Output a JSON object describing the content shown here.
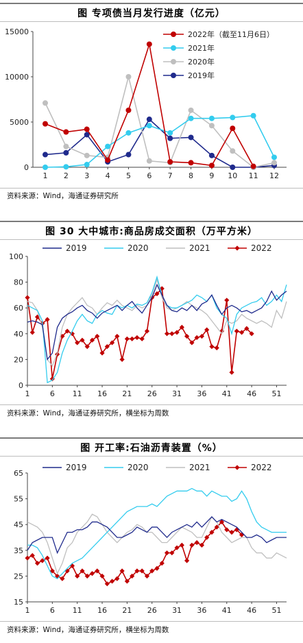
{
  "panels": [
    {
      "title": "图    专项债当月发行进度（亿元）",
      "source": "资料来源：Wind，海通证券研究所"
    },
    {
      "title": "图    30 大中城市:商品房成交面积（万平方米）",
      "source": "资料来源：Wind，海通证券研究所，横坐标为周数"
    },
    {
      "title": "图    开工率:石油沥青装置（%）",
      "source": "资料来源：Wind，海通证券研究所，横坐标为周数"
    }
  ],
  "chart_data": [
    {
      "type": "line",
      "title": "专项债当月发行进度（亿元）",
      "x": [
        1,
        2,
        3,
        4,
        5,
        6,
        7,
        8,
        9,
        10,
        11,
        12
      ],
      "xticks": [
        "1",
        "2",
        "3",
        "4",
        "5",
        "6",
        "7",
        "8",
        "9",
        "10",
        "11",
        "12"
      ],
      "ylim": [
        0,
        15000
      ],
      "yticks": [
        "0",
        "5000",
        "10000",
        "15000"
      ],
      "legend_position": "top-right",
      "series": [
        {
          "name": "2022年（截至11月6日）",
          "color": "#c00000",
          "marker": "circle",
          "values": [
            4800,
            3900,
            4200,
            800,
            6300,
            13600,
            600,
            500,
            200,
            4300,
            100,
            null
          ]
        },
        {
          "name": "2021年",
          "color": "#33ccee",
          "marker": "circle",
          "values": [
            0,
            50,
            300,
            2300,
            3800,
            4600,
            3800,
            5400,
            5400,
            5500,
            5700,
            1100
          ]
        },
        {
          "name": "2020年",
          "color": "#bfbfbf",
          "marker": "circle",
          "values": [
            7100,
            2300,
            1300,
            1100,
            10000,
            700,
            500,
            6300,
            4600,
            1800,
            0,
            500
          ]
        },
        {
          "name": "2019年",
          "color": "#1f2a8c",
          "marker": "circle",
          "values": [
            1400,
            1600,
            3600,
            600,
            1400,
            5300,
            3200,
            3300,
            1300,
            0,
            0,
            200
          ]
        }
      ]
    },
    {
      "type": "line",
      "title": "30 大中城市:商品房成交面积（万平方米）",
      "x_range": [
        1,
        53
      ],
      "xticks": [
        "1",
        "6",
        "11",
        "16",
        "21",
        "26",
        "31",
        "36",
        "41",
        "46",
        "51"
      ],
      "ylim": [
        0,
        100
      ],
      "yticks": [
        "0",
        "20",
        "40",
        "60",
        "80",
        "100"
      ],
      "legend_position": "top",
      "series": [
        {
          "name": "2019",
          "color": "#1f2a8c",
          "marker": "none",
          "values": [
            49,
            50,
            49,
            47,
            20,
            25,
            45,
            52,
            55,
            57,
            60,
            62,
            58,
            56,
            52,
            56,
            58,
            60,
            62,
            58,
            62,
            65,
            60,
            56,
            62,
            68,
            78,
            70,
            62,
            58,
            57,
            60,
            58,
            62,
            58,
            63,
            65,
            70,
            62,
            55,
            60,
            62,
            60,
            57,
            58,
            56,
            58,
            60,
            65,
            73,
            66,
            70,
            73
          ]
        },
        {
          "name": "2020",
          "color": "#33ccee",
          "marker": "none",
          "values": [
            62,
            60,
            58,
            50,
            2,
            4,
            10,
            25,
            35,
            42,
            50,
            55,
            50,
            48,
            55,
            58,
            56,
            55,
            62,
            60,
            62,
            60,
            63,
            62,
            64,
            72,
            84,
            70,
            62,
            60,
            60,
            62,
            64,
            66,
            70,
            68,
            65,
            70,
            60,
            55,
            52,
            40,
            55,
            60,
            62,
            64,
            65,
            68,
            62,
            65,
            70,
            65,
            78
          ]
        },
        {
          "name": "2021",
          "color": "#bfbfbf",
          "marker": "none",
          "values": [
            65,
            64,
            58,
            45,
            20,
            15,
            25,
            45,
            55,
            60,
            64,
            68,
            62,
            60,
            55,
            60,
            64,
            62,
            66,
            62,
            60,
            58,
            62,
            60,
            62,
            70,
            82,
            68,
            60,
            58,
            60,
            62,
            65,
            62,
            60,
            58,
            55,
            50,
            45,
            40,
            50,
            48,
            50,
            55,
            52,
            50,
            48,
            50,
            48,
            45,
            58,
            52,
            65
          ]
        },
        {
          "name": "2022",
          "color": "#c00000",
          "marker": "diamond",
          "values": [
            68,
            41,
            53,
            48,
            51,
            5,
            24,
            38,
            42,
            40,
            33,
            35,
            30,
            35,
            38,
            25,
            30,
            33,
            38,
            20,
            36,
            36,
            37,
            36,
            42,
            68,
            71,
            75,
            40,
            40,
            41,
            45,
            38,
            33,
            37,
            38,
            43,
            30,
            29,
            42,
            66,
            10,
            42,
            41,
            44,
            40
          ]
        }
      ]
    },
    {
      "type": "line",
      "title": "开工率:石油沥青装置（%）",
      "x_range": [
        1,
        53
      ],
      "xticks": [
        "1",
        "6",
        "11",
        "16",
        "21",
        "26",
        "31",
        "36",
        "41",
        "46",
        "51"
      ],
      "ylim": [
        15,
        65
      ],
      "yticks": [
        "15",
        "25",
        "35",
        "45",
        "55",
        "65"
      ],
      "legend_position": "top",
      "series": [
        {
          "name": "2019",
          "color": "#1f2a8c",
          "marker": "none",
          "values": [
            35,
            38,
            39,
            40,
            40,
            40,
            34,
            38,
            42,
            42,
            43,
            43,
            44,
            46,
            46,
            45,
            44,
            42,
            40,
            40,
            41,
            42,
            44,
            43,
            42,
            44,
            44,
            42,
            40,
            42,
            43,
            44,
            45,
            44,
            46,
            44,
            46,
            48,
            46,
            47,
            46,
            45,
            44,
            42,
            40,
            40,
            41,
            40,
            38,
            39,
            40,
            40,
            40
          ]
        },
        {
          "name": "2020",
          "color": "#33ccee",
          "marker": "none",
          "values": [
            37,
            37,
            36,
            33,
            29,
            25,
            24,
            26,
            28,
            30,
            31,
            32,
            34,
            36,
            38,
            40,
            42,
            44,
            46,
            48,
            50,
            51,
            52,
            52,
            52,
            53,
            52,
            54,
            56,
            57,
            58,
            58,
            58,
            59,
            58,
            58,
            56,
            58,
            57,
            56,
            56,
            54,
            55,
            58,
            55,
            50,
            46,
            44,
            43,
            42,
            42,
            42,
            42
          ]
        },
        {
          "name": "2021",
          "color": "#bfbfbf",
          "marker": "none",
          "values": [
            46,
            45,
            44,
            42,
            38,
            32,
            26,
            30,
            36,
            38,
            42,
            44,
            46,
            49,
            48,
            45,
            42,
            40,
            38,
            40,
            42,
            43,
            45,
            44,
            42,
            42,
            40,
            38,
            38,
            40,
            42,
            44,
            43,
            42,
            40,
            40,
            44,
            48,
            46,
            42,
            40,
            38,
            39,
            40,
            40,
            36,
            34,
            34,
            32,
            32,
            34,
            33,
            32
          ]
        },
        {
          "name": "2022",
          "color": "#c00000",
          "marker": "diamond",
          "values": [
            32,
            33,
            30,
            31,
            32,
            27,
            25,
            24,
            27,
            29,
            25,
            27,
            25,
            26,
            27,
            25,
            22,
            23,
            24,
            27,
            23,
            25,
            27,
            27,
            25,
            27,
            28,
            30,
            34,
            34,
            36,
            37,
            31,
            37,
            38,
            37,
            40,
            42,
            44,
            46,
            43,
            42,
            43,
            41
          ]
        }
      ]
    }
  ]
}
